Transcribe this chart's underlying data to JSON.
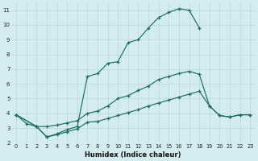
{
  "xlabel": "Humidex (Indice chaleur)",
  "bg_color": "#d4ecf0",
  "grid_color": "#b8d8dc",
  "line_color": "#1a6e60",
  "xlim": [
    -0.5,
    23.5
  ],
  "ylim": [
    2,
    11.5
  ],
  "xticks": [
    0,
    1,
    2,
    3,
    4,
    5,
    6,
    7,
    8,
    9,
    10,
    11,
    12,
    13,
    14,
    15,
    16,
    17,
    18,
    19,
    20,
    21,
    22,
    23
  ],
  "yticks": [
    2,
    3,
    4,
    5,
    6,
    7,
    8,
    9,
    10,
    11
  ],
  "curve_upper_x": [
    0,
    2,
    3,
    4,
    5,
    6,
    7,
    8,
    9,
    10,
    11,
    12,
    13,
    14,
    15,
    16,
    17,
    18
  ],
  "curve_upper_y": [
    3.9,
    3.1,
    2.4,
    2.6,
    2.9,
    3.1,
    6.5,
    6.7,
    7.4,
    7.5,
    8.8,
    9.0,
    9.8,
    10.5,
    10.85,
    11.1,
    11.0,
    9.8
  ],
  "curve_mid_x": [
    0,
    1,
    2,
    3,
    4,
    5,
    6,
    7,
    8,
    9,
    10,
    11,
    12,
    13,
    14,
    15,
    16,
    17,
    18,
    19,
    20,
    21,
    22,
    23
  ],
  "curve_mid_y": [
    3.9,
    3.3,
    3.1,
    3.1,
    3.2,
    3.35,
    3.5,
    4.0,
    4.15,
    4.5,
    5.0,
    5.2,
    5.55,
    5.85,
    6.3,
    6.5,
    6.7,
    6.85,
    6.65,
    4.5,
    3.85,
    3.75,
    3.9,
    3.9
  ],
  "curve_lower_x": [
    0,
    2,
    3,
    4,
    5,
    6,
    7,
    8,
    9,
    10,
    11,
    12,
    13,
    14,
    15,
    16,
    17,
    18,
    19,
    20,
    21,
    22,
    23
  ],
  "curve_lower_y": [
    3.9,
    3.1,
    2.4,
    2.55,
    2.75,
    2.95,
    3.4,
    3.45,
    3.65,
    3.85,
    4.05,
    4.25,
    4.5,
    4.7,
    4.9,
    5.1,
    5.3,
    5.5,
    4.5,
    3.85,
    3.75,
    3.9,
    3.9
  ]
}
